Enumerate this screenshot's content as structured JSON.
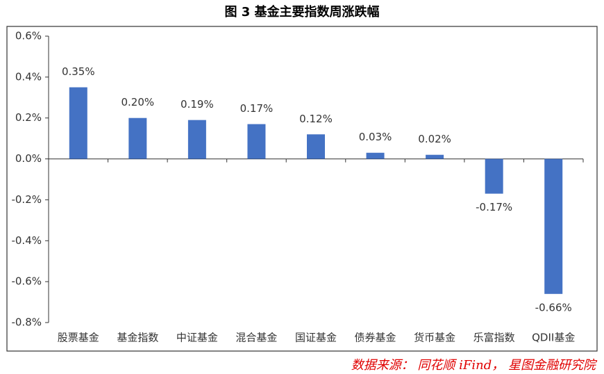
{
  "chart_data": {
    "type": "bar",
    "title": "图 3 基金主要指数周涨跌幅",
    "categories": [
      "股票基金",
      "基金指数",
      "中证基金",
      "混合基金",
      "国证基金",
      "债券基金",
      "货币基金",
      "乐富指数",
      "QDII基金"
    ],
    "values": [
      0.35,
      0.2,
      0.19,
      0.17,
      0.12,
      0.03,
      0.02,
      -0.17,
      -0.66
    ],
    "value_labels": [
      "0.35%",
      "0.20%",
      "0.19%",
      "0.17%",
      "0.12%",
      "0.03%",
      "0.02%",
      "-0.17%",
      "-0.66%"
    ],
    "color": "#4472c4",
    "ylim": [
      -0.8,
      0.6
    ],
    "yticks": [
      {
        "value": -0.8,
        "label": "-0.8%"
      },
      {
        "value": -0.6,
        "label": "-0.6%"
      },
      {
        "value": -0.4,
        "label": "-0.4%"
      },
      {
        "value": -0.2,
        "label": "-0.2%"
      },
      {
        "value": 0,
        "label": "0.0%"
      },
      {
        "value": 0.2,
        "label": "0.2%"
      },
      {
        "value": 0.4,
        "label": "0.4%"
      },
      {
        "value": 0.6,
        "label": "0.6%"
      }
    ],
    "grid": false,
    "source": "数据来源：  同花顺 iFind，  星图金融研究院"
  }
}
